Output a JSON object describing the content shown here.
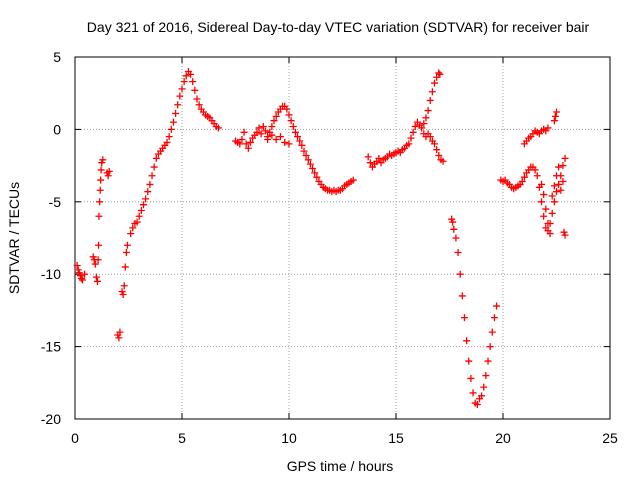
{
  "chart_data": {
    "type": "scatter",
    "title": "Day 321 of 2016, Sidereal Day-to-day VTEC variation (SDTVAR) for receiver bair",
    "xlabel": "GPS time / hours",
    "ylabel": "SDTVAR / TECUs",
    "xlim": [
      0,
      25
    ],
    "ylim": [
      -20,
      5
    ],
    "grid": true,
    "marker": "+",
    "series_color": "#ff0000",
    "x_ticks": [
      {
        "value": 0,
        "label": "0"
      },
      {
        "value": 5,
        "label": "5"
      },
      {
        "value": 10,
        "label": "10"
      },
      {
        "value": 15,
        "label": "15"
      },
      {
        "value": 20,
        "label": "20"
      },
      {
        "value": 25,
        "label": "25"
      }
    ],
    "y_ticks": [
      {
        "value": 5,
        "label": "5"
      },
      {
        "value": 0,
        "label": "0"
      },
      {
        "value": -5,
        "label": "-5"
      },
      {
        "value": -10,
        "label": "-10"
      },
      {
        "value": -15,
        "label": "-15"
      },
      {
        "value": -20,
        "label": "-20"
      }
    ],
    "series": [
      {
        "name": "SDTVAR",
        "points": [
          [
            0.1,
            -9.4
          ],
          [
            0.15,
            -9.7
          ],
          [
            0.2,
            -9.9
          ],
          [
            0.25,
            -10.1
          ],
          [
            0.3,
            -10.3
          ],
          [
            0.35,
            -10.4
          ],
          [
            0.45,
            -10.0
          ],
          [
            0.85,
            -8.8
          ],
          [
            0.9,
            -9.0
          ],
          [
            0.95,
            -9.3
          ],
          [
            1.0,
            -10.2
          ],
          [
            1.05,
            -10.5
          ],
          [
            1.08,
            -9.0
          ],
          [
            1.1,
            -8.0
          ],
          [
            1.12,
            -6.0
          ],
          [
            1.15,
            -5.0
          ],
          [
            1.18,
            -4.2
          ],
          [
            1.2,
            -3.5
          ],
          [
            1.22,
            -2.8
          ],
          [
            1.25,
            -2.3
          ],
          [
            1.3,
            -2.1
          ],
          [
            1.5,
            -3.0
          ],
          [
            1.55,
            -3.2
          ],
          [
            1.6,
            -2.9
          ],
          [
            2.0,
            -14.2
          ],
          [
            2.05,
            -14.4
          ],
          [
            2.1,
            -14.0
          ],
          [
            2.2,
            -11.2
          ],
          [
            2.25,
            -11.4
          ],
          [
            2.3,
            -10.8
          ],
          [
            2.35,
            -9.5
          ],
          [
            2.4,
            -8.5
          ],
          [
            2.45,
            -8.0
          ],
          [
            2.6,
            -7.2
          ],
          [
            2.7,
            -6.8
          ],
          [
            2.8,
            -6.5
          ],
          [
            2.9,
            -6.4
          ],
          [
            3.0,
            -6.0
          ],
          [
            3.1,
            -5.6
          ],
          [
            3.2,
            -5.2
          ],
          [
            3.3,
            -4.8
          ],
          [
            3.4,
            -4.3
          ],
          [
            3.5,
            -3.8
          ],
          [
            3.6,
            -3.2
          ],
          [
            3.7,
            -2.6
          ],
          [
            3.8,
            -2.0
          ],
          [
            3.9,
            -1.7
          ],
          [
            4.0,
            -1.5
          ],
          [
            4.1,
            -1.3
          ],
          [
            4.2,
            -1.1
          ],
          [
            4.3,
            -0.9
          ],
          [
            4.4,
            -0.5
          ],
          [
            4.5,
            0.0
          ],
          [
            4.6,
            0.5
          ],
          [
            4.7,
            1.1
          ],
          [
            4.8,
            1.7
          ],
          [
            4.9,
            2.3
          ],
          [
            5.0,
            2.8
          ],
          [
            5.1,
            3.3
          ],
          [
            5.2,
            3.7
          ],
          [
            5.3,
            4.0
          ],
          [
            5.4,
            3.8
          ],
          [
            5.5,
            3.3
          ],
          [
            5.6,
            2.7
          ],
          [
            5.7,
            2.1
          ],
          [
            5.8,
            1.7
          ],
          [
            5.9,
            1.4
          ],
          [
            6.0,
            1.2
          ],
          [
            6.1,
            1.0
          ],
          [
            6.2,
            0.9
          ],
          [
            6.3,
            0.8
          ],
          [
            6.4,
            0.6
          ],
          [
            6.5,
            0.4
          ],
          [
            6.6,
            0.2
          ],
          [
            6.7,
            0.1
          ],
          [
            7.5,
            -0.8
          ],
          [
            7.6,
            -0.9
          ],
          [
            7.7,
            -1.0
          ],
          [
            7.8,
            -0.7
          ],
          [
            7.9,
            -0.2
          ],
          [
            8.0,
            -1.0
          ],
          [
            8.1,
            -1.3
          ],
          [
            8.2,
            -0.9
          ],
          [
            8.3,
            -0.6
          ],
          [
            8.4,
            -0.4
          ],
          [
            8.5,
            -0.2
          ],
          [
            8.6,
            0.1
          ],
          [
            8.7,
            -0.3
          ],
          [
            8.8,
            0.2
          ],
          [
            8.9,
            -0.1
          ],
          [
            9.0,
            -0.5
          ],
          [
            9.1,
            -0.2
          ],
          [
            9.2,
            0.2
          ],
          [
            9.3,
            0.6
          ],
          [
            9.4,
            0.9
          ],
          [
            9.5,
            1.2
          ],
          [
            9.6,
            1.4
          ],
          [
            9.7,
            1.6
          ],
          [
            9.8,
            1.6
          ],
          [
            9.9,
            1.4
          ],
          [
            10.0,
            1.0
          ],
          [
            10.1,
            0.6
          ],
          [
            10.2,
            0.2
          ],
          [
            10.3,
            -0.2
          ],
          [
            10.4,
            -0.5
          ],
          [
            10.5,
            -0.8
          ],
          [
            10.6,
            -1.1
          ],
          [
            10.7,
            -1.5
          ],
          [
            10.8,
            -1.8
          ],
          [
            10.9,
            -2.1
          ],
          [
            11.0,
            -2.4
          ],
          [
            11.1,
            -2.7
          ],
          [
            11.2,
            -3.0
          ],
          [
            11.3,
            -3.3
          ],
          [
            11.4,
            -3.6
          ],
          [
            11.5,
            -3.8
          ],
          [
            11.6,
            -4.0
          ],
          [
            11.7,
            -4.1
          ],
          [
            11.8,
            -4.2
          ],
          [
            11.9,
            -4.2
          ],
          [
            12.0,
            -4.3
          ],
          [
            12.1,
            -4.2
          ],
          [
            12.2,
            -4.3
          ],
          [
            12.3,
            -4.2
          ],
          [
            12.4,
            -4.2
          ],
          [
            12.5,
            -4.1
          ],
          [
            12.6,
            -3.9
          ],
          [
            12.7,
            -3.8
          ],
          [
            12.8,
            -3.7
          ],
          [
            12.9,
            -3.6
          ],
          [
            13.0,
            -3.5
          ],
          [
            9.0,
            -0.7
          ],
          [
            9.2,
            -0.4
          ],
          [
            9.4,
            -0.7
          ],
          [
            9.6,
            -0.5
          ],
          [
            9.8,
            -0.9
          ],
          [
            10.0,
            -1.0
          ],
          [
            13.7,
            -1.9
          ],
          [
            13.8,
            -2.3
          ],
          [
            13.9,
            -2.6
          ],
          [
            14.0,
            -2.4
          ],
          [
            14.1,
            -2.2
          ],
          [
            14.2,
            -2.0
          ],
          [
            14.3,
            -2.3
          ],
          [
            14.4,
            -2.1
          ],
          [
            14.5,
            -2.0
          ],
          [
            14.6,
            -1.9
          ],
          [
            14.7,
            -1.7
          ],
          [
            14.8,
            -1.8
          ],
          [
            14.9,
            -1.7
          ],
          [
            15.0,
            -1.6
          ],
          [
            15.1,
            -1.5
          ],
          [
            15.2,
            -1.6
          ],
          [
            15.3,
            -1.4
          ],
          [
            15.4,
            -1.3
          ],
          [
            15.5,
            -1.1
          ],
          [
            15.6,
            -1.0
          ],
          [
            15.7,
            -0.6
          ],
          [
            15.8,
            -0.2
          ],
          [
            15.9,
            0.2
          ],
          [
            16.0,
            0.5
          ],
          [
            16.1,
            0.3
          ],
          [
            16.2,
            0.1
          ],
          [
            16.3,
            0.4
          ],
          [
            16.4,
            0.8
          ],
          [
            16.5,
            1.3
          ],
          [
            16.6,
            2.0
          ],
          [
            16.7,
            2.6
          ],
          [
            16.8,
            3.2
          ],
          [
            16.9,
            3.6
          ],
          [
            17.0,
            3.9
          ],
          [
            17.05,
            3.8
          ],
          [
            16.3,
            -0.3
          ],
          [
            16.4,
            -0.5
          ],
          [
            16.5,
            -0.3
          ],
          [
            16.6,
            -0.5
          ],
          [
            16.7,
            -0.8
          ],
          [
            16.8,
            -1.0
          ],
          [
            16.9,
            -1.4
          ],
          [
            17.0,
            -1.8
          ],
          [
            17.1,
            -2.1
          ],
          [
            17.2,
            -2.2
          ],
          [
            17.6,
            -6.2
          ],
          [
            17.65,
            -6.4
          ],
          [
            17.7,
            -6.9
          ],
          [
            17.8,
            -7.5
          ],
          [
            17.9,
            -8.5
          ],
          [
            18.0,
            -10.0
          ],
          [
            18.1,
            -11.5
          ],
          [
            18.2,
            -13.0
          ],
          [
            18.3,
            -14.6
          ],
          [
            18.4,
            -16.0
          ],
          [
            18.5,
            -17.2
          ],
          [
            18.6,
            -18.2
          ],
          [
            18.7,
            -18.9
          ],
          [
            18.8,
            -19.0
          ],
          [
            18.9,
            -18.6
          ],
          [
            19.0,
            -18.4
          ],
          [
            19.1,
            -17.8
          ],
          [
            19.2,
            -17.0
          ],
          [
            19.3,
            -16.0
          ],
          [
            19.4,
            -15.0
          ],
          [
            19.5,
            -14.0
          ],
          [
            19.6,
            -13.0
          ],
          [
            19.7,
            -12.2
          ],
          [
            19.9,
            -3.5
          ],
          [
            20.0,
            -3.6
          ],
          [
            20.1,
            -3.5
          ],
          [
            20.2,
            -3.7
          ],
          [
            20.3,
            -3.8
          ],
          [
            20.4,
            -4.0
          ],
          [
            20.5,
            -4.1
          ],
          [
            20.6,
            -4.0
          ],
          [
            20.7,
            -3.9
          ],
          [
            20.8,
            -3.8
          ],
          [
            20.9,
            -3.6
          ],
          [
            21.0,
            -3.3
          ],
          [
            21.1,
            -3.0
          ],
          [
            21.2,
            -2.8
          ],
          [
            21.3,
            -2.6
          ],
          [
            21.4,
            -2.6
          ],
          [
            21.5,
            -2.8
          ],
          [
            21.6,
            -3.2
          ],
          [
            21.7,
            -4.0
          ],
          [
            21.8,
            -5.0
          ],
          [
            21.9,
            -6.0
          ],
          [
            22.0,
            -6.8
          ],
          [
            22.1,
            -7.0
          ],
          [
            22.2,
            -6.5
          ],
          [
            22.3,
            -5.8
          ],
          [
            22.4,
            -5.0
          ],
          [
            22.5,
            -4.3
          ],
          [
            22.6,
            -3.8
          ],
          [
            22.7,
            -3.2
          ],
          [
            22.8,
            -2.5
          ],
          [
            22.9,
            -2.0
          ],
          [
            21.0,
            -1.0
          ],
          [
            21.1,
            -0.8
          ],
          [
            21.2,
            -0.6
          ],
          [
            21.3,
            -0.5
          ],
          [
            21.4,
            -0.3
          ],
          [
            21.5,
            -0.1
          ],
          [
            21.6,
            -0.2
          ],
          [
            21.7,
            -0.3
          ],
          [
            21.8,
            -0.1
          ],
          [
            21.9,
            0.0
          ],
          [
            22.0,
            -0.1
          ],
          [
            22.1,
            0.1
          ],
          [
            21.8,
            -3.8
          ],
          [
            21.9,
            -4.5
          ],
          [
            22.0,
            -5.5
          ],
          [
            22.1,
            -6.5
          ],
          [
            22.2,
            -7.2
          ],
          [
            22.3,
            -4.6
          ],
          [
            22.4,
            -3.9
          ],
          [
            22.5,
            -3.2
          ],
          [
            22.6,
            -2.6
          ],
          [
            22.7,
            -4.2
          ],
          [
            22.8,
            -3.6
          ],
          [
            22.4,
            0.6
          ],
          [
            22.45,
            0.9
          ],
          [
            22.5,
            1.2
          ],
          [
            22.85,
            -7.1
          ],
          [
            22.9,
            -7.3
          ]
        ]
      }
    ]
  }
}
